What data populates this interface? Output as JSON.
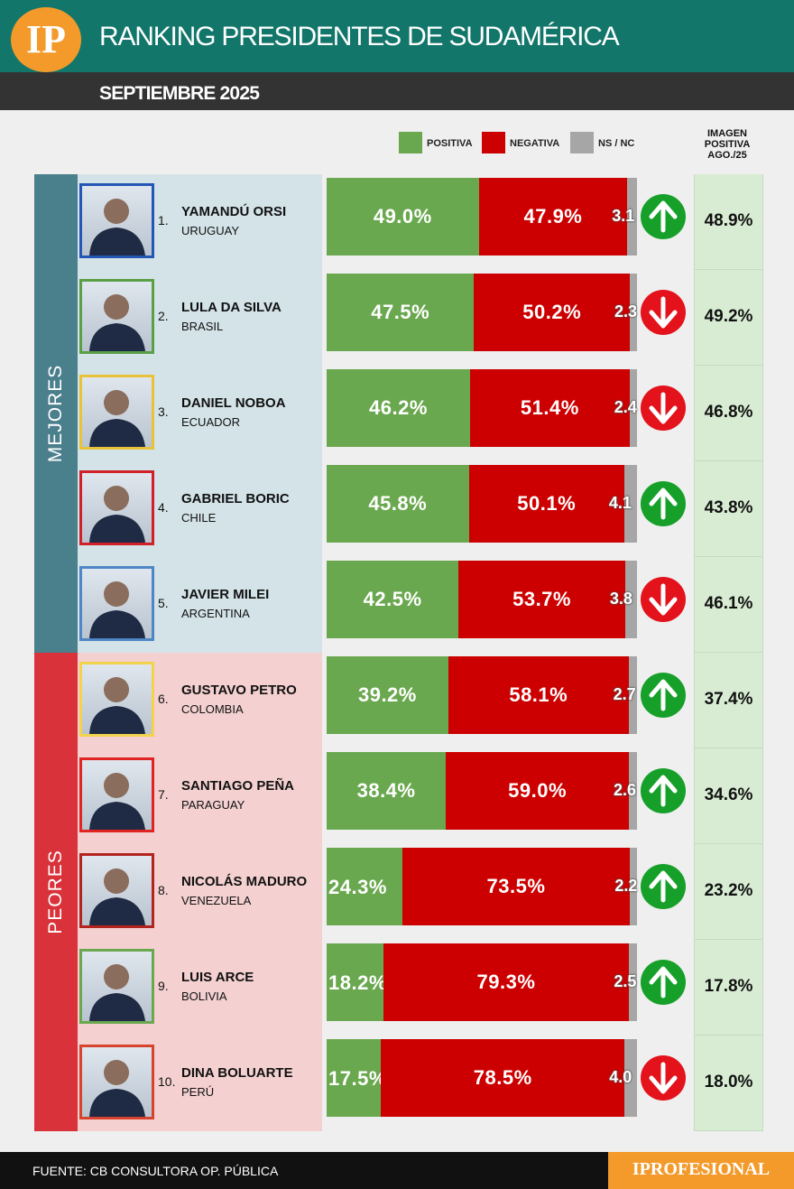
{
  "header": {
    "logo": "IP",
    "title": "RANKING PRESIDENTES DE SUDAMÉRICA",
    "subtitle": "SEPTIEMBRE 2025"
  },
  "chart_data": {
    "type": "stacked-bar",
    "xlim": [
      0,
      100
    ],
    "series": [
      {
        "name": "POSITIVA",
        "color": "#6aa84f"
      },
      {
        "name": "NEGATIVA",
        "color": "#cc0000"
      },
      {
        "name": "NS / NC",
        "color": "#a6a6a6"
      }
    ],
    "previous_title": "IMAGEN POSITIVA AGO./25",
    "trend_colors": {
      "up": "#16a02a",
      "down": "#e3121b"
    },
    "groups": [
      {
        "label": "MEJORES",
        "color": "#4a7f8c",
        "background": "#d3e3e8",
        "rows": [
          {
            "rank": "1.",
            "name": "YAMANDÚ ORSI",
            "country": "URUGUAY",
            "frame_color": "#2456b5",
            "values": [
              49.0,
              47.9,
              3.1
            ],
            "value_labels": [
              "49.0%",
              "47.9%",
              "3.1"
            ],
            "previous": 48.9,
            "previous_label": "48.9%"
          },
          {
            "rank": "2.",
            "name": "LULA DA SILVA",
            "country": "BRASIL",
            "frame_color": "#5aa046",
            "values": [
              47.5,
              50.2,
              2.3
            ],
            "value_labels": [
              "47.5%",
              "50.2%",
              "2.3"
            ],
            "previous": 49.2,
            "previous_label": "49.2%"
          },
          {
            "rank": "3.",
            "name": "DANIEL NOBOA",
            "country": "ECUADOR",
            "frame_color": "#e8c23a",
            "values": [
              46.2,
              51.4,
              2.4
            ],
            "value_labels": [
              "46.2%",
              "51.4%",
              "2.4"
            ],
            "previous": 46.8,
            "previous_label": "46.8%"
          },
          {
            "rank": "4.",
            "name": "GABRIEL BORIC",
            "country": "CHILE",
            "frame_color": "#d2202a",
            "values": [
              45.8,
              50.1,
              4.1
            ],
            "value_labels": [
              "45.8%",
              "50.1%",
              "4.1"
            ],
            "previous": 43.8,
            "previous_label": "43.8%"
          },
          {
            "rank": "5.",
            "name": "JAVIER MILEI",
            "country": "ARGENTINA",
            "frame_color": "#4f86c6",
            "values": [
              42.5,
              53.7,
              3.8
            ],
            "value_labels": [
              "42.5%",
              "53.7%",
              "3.8"
            ],
            "previous": 46.1,
            "previous_label": "46.1%"
          }
        ]
      },
      {
        "label": "PEORES",
        "color": "#d9323a",
        "background": "#f4d0d0",
        "rows": [
          {
            "rank": "6.",
            "name": "GUSTAVO PETRO",
            "country": "COLOMBIA",
            "frame_color": "#f2d34b",
            "values": [
              39.2,
              58.1,
              2.7
            ],
            "value_labels": [
              "39.2%",
              "58.1%",
              "2.7"
            ],
            "previous": 37.4,
            "previous_label": "37.4%"
          },
          {
            "rank": "7.",
            "name": "SANTIAGO PEÑA",
            "country": "PARAGUAY",
            "frame_color": "#e02424",
            "values": [
              38.4,
              59.0,
              2.6
            ],
            "value_labels": [
              "38.4%",
              "59.0%",
              "2.6"
            ],
            "previous": 34.6,
            "previous_label": "34.6%"
          },
          {
            "rank": "8.",
            "name": "NICOLÁS MADURO",
            "country": "VENEZUELA",
            "frame_color": "#b3241f",
            "values": [
              24.3,
              73.5,
              2.2
            ],
            "value_labels": [
              "24.3%",
              "73.5%",
              "2.2"
            ],
            "previous": 23.2,
            "previous_label": "23.2%"
          },
          {
            "rank": "9.",
            "name": "LUIS ARCE",
            "country": "BOLIVIA",
            "frame_color": "#6aa84f",
            "values": [
              18.2,
              79.3,
              2.5
            ],
            "value_labels": [
              "18.2%",
              "79.3%",
              "2.5"
            ],
            "previous": 17.8,
            "previous_label": "17.8%"
          },
          {
            "rank": "10.",
            "name": "DINA BOLUARTE",
            "country": "PERÚ",
            "frame_color": "#d8432f",
            "values": [
              17.5,
              78.5,
              4.0
            ],
            "value_labels": [
              "17.5%",
              "78.5%",
              "4.0"
            ],
            "previous": 18.0,
            "previous_label": "18.0%"
          }
        ]
      }
    ]
  },
  "footer": {
    "source": "FUENTE: CB CONSULTORA OP. PÚBLICA",
    "brand": "IPROFESIONAL"
  }
}
